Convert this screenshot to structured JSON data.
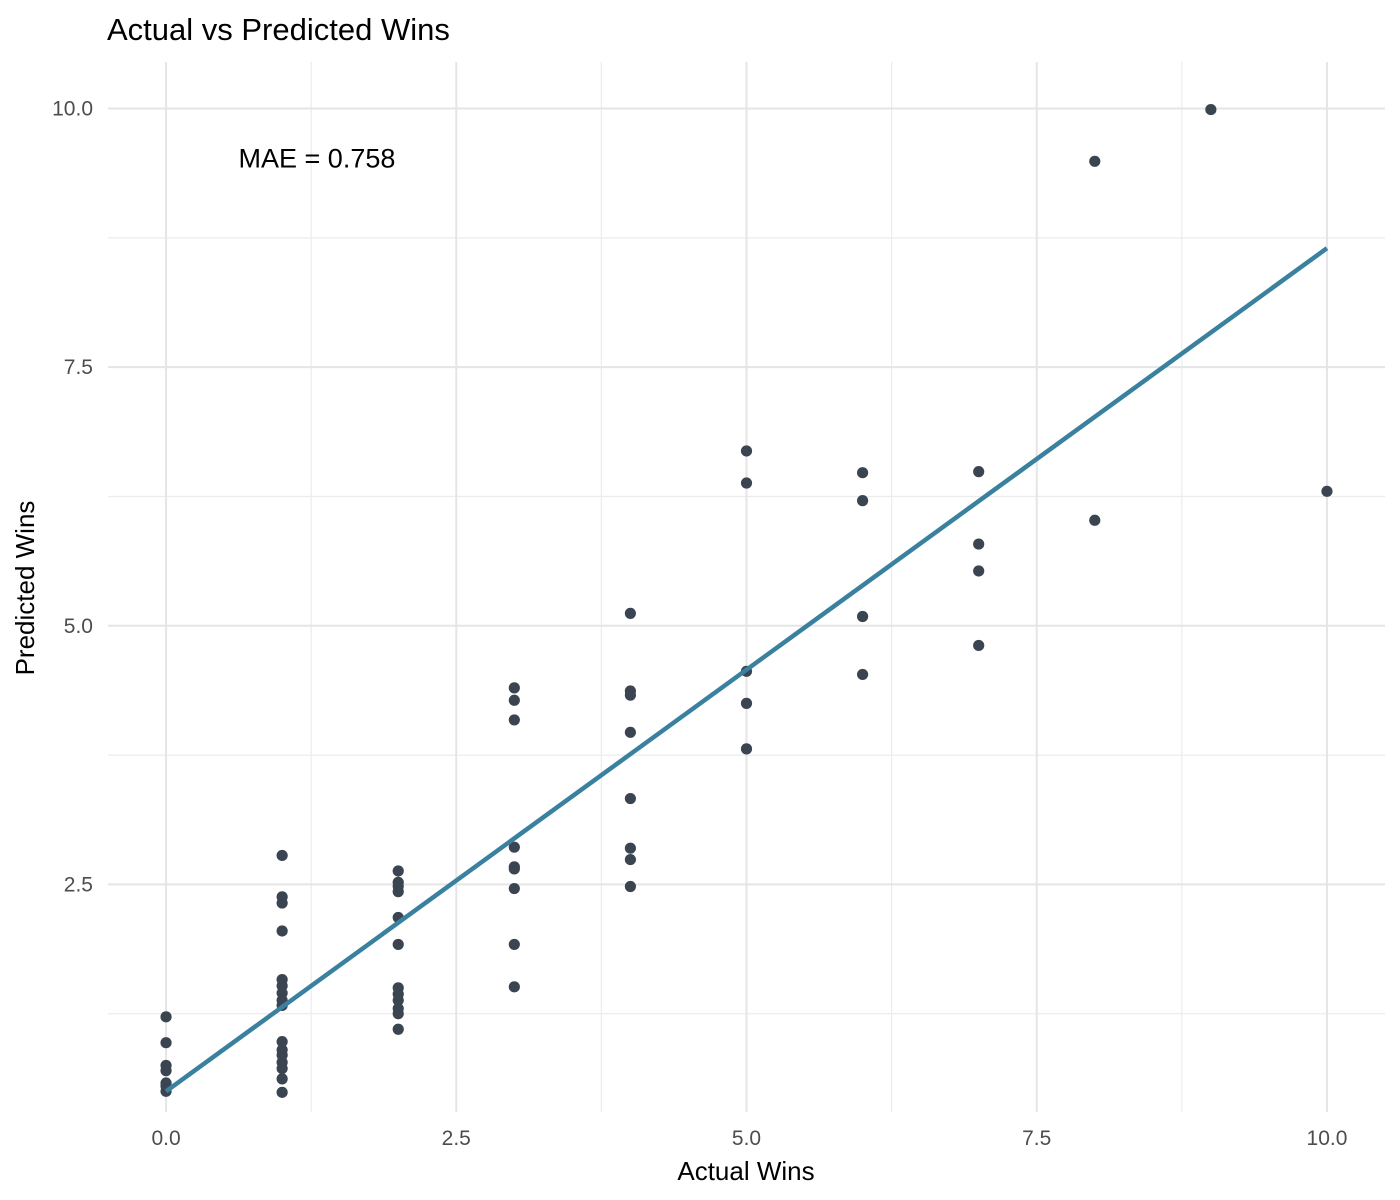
{
  "chart_data": {
    "type": "scatter",
    "title": "Actual vs Predicted Wins",
    "xlabel": "Actual Wins",
    "ylabel": "Predicted Wins",
    "xlim": [
      -0.5,
      10.5
    ],
    "ylim": [
      0.3,
      10.45
    ],
    "x_ticks": [
      0.0,
      2.5,
      5.0,
      7.5,
      10.0
    ],
    "y_ticks": [
      2.5,
      5.0,
      7.5,
      10.0
    ],
    "x_tick_labels": [
      "0.0",
      "2.5",
      "5.0",
      "7.5",
      "10.0"
    ],
    "y_tick_labels": [
      "2.5",
      "5.0",
      "7.5",
      "10.0"
    ],
    "grid": true,
    "annotation": {
      "text": "MAE = 0.758",
      "x": 1.3,
      "y": 9.5
    },
    "point_color": "#3b4552",
    "fit_line": {
      "color": "#3a819f",
      "x": [
        0,
        10
      ],
      "y": [
        0.5,
        8.65
      ]
    },
    "points": [
      {
        "x": 0,
        "y": 1.22
      },
      {
        "x": 0,
        "y": 0.97
      },
      {
        "x": 0,
        "y": 0.75
      },
      {
        "x": 0,
        "y": 0.7
      },
      {
        "x": 0,
        "y": 0.58
      },
      {
        "x": 0,
        "y": 0.55
      },
      {
        "x": 0,
        "y": 0.5
      },
      {
        "x": 1,
        "y": 2.78
      },
      {
        "x": 1,
        "y": 2.38
      },
      {
        "x": 1,
        "y": 2.32
      },
      {
        "x": 1,
        "y": 2.05
      },
      {
        "x": 1,
        "y": 1.58
      },
      {
        "x": 1,
        "y": 1.52
      },
      {
        "x": 1,
        "y": 1.45
      },
      {
        "x": 1,
        "y": 1.38
      },
      {
        "x": 1,
        "y": 1.33
      },
      {
        "x": 1,
        "y": 0.98
      },
      {
        "x": 1,
        "y": 0.9
      },
      {
        "x": 1,
        "y": 0.85
      },
      {
        "x": 1,
        "y": 0.78
      },
      {
        "x": 1,
        "y": 0.72
      },
      {
        "x": 1,
        "y": 0.62
      },
      {
        "x": 1,
        "y": 0.49
      },
      {
        "x": 2,
        "y": 2.63
      },
      {
        "x": 2,
        "y": 2.52
      },
      {
        "x": 2,
        "y": 2.48
      },
      {
        "x": 2,
        "y": 2.43
      },
      {
        "x": 2,
        "y": 2.18
      },
      {
        "x": 2,
        "y": 1.92
      },
      {
        "x": 2,
        "y": 1.5
      },
      {
        "x": 2,
        "y": 1.44
      },
      {
        "x": 2,
        "y": 1.38
      },
      {
        "x": 2,
        "y": 1.3
      },
      {
        "x": 2,
        "y": 1.25
      },
      {
        "x": 2,
        "y": 1.1
      },
      {
        "x": 3,
        "y": 4.4
      },
      {
        "x": 3,
        "y": 4.28
      },
      {
        "x": 3,
        "y": 4.09
      },
      {
        "x": 3,
        "y": 2.86
      },
      {
        "x": 3,
        "y": 2.67
      },
      {
        "x": 3,
        "y": 2.65
      },
      {
        "x": 3,
        "y": 2.46
      },
      {
        "x": 3,
        "y": 1.92
      },
      {
        "x": 3,
        "y": 1.51
      },
      {
        "x": 4,
        "y": 5.12
      },
      {
        "x": 4,
        "y": 4.37
      },
      {
        "x": 4,
        "y": 4.33
      },
      {
        "x": 4,
        "y": 3.97
      },
      {
        "x": 4,
        "y": 3.33
      },
      {
        "x": 4,
        "y": 2.85
      },
      {
        "x": 4,
        "y": 2.74
      },
      {
        "x": 4,
        "y": 2.48
      },
      {
        "x": 5,
        "y": 6.69
      },
      {
        "x": 5,
        "y": 6.38
      },
      {
        "x": 5,
        "y": 4.56
      },
      {
        "x": 5,
        "y": 4.25
      },
      {
        "x": 5,
        "y": 3.81
      },
      {
        "x": 6,
        "y": 6.48
      },
      {
        "x": 6,
        "y": 6.21
      },
      {
        "x": 6,
        "y": 5.09
      },
      {
        "x": 6,
        "y": 4.53
      },
      {
        "x": 7,
        "y": 6.49
      },
      {
        "x": 7,
        "y": 5.79
      },
      {
        "x": 7,
        "y": 5.53
      },
      {
        "x": 7,
        "y": 4.81
      },
      {
        "x": 8,
        "y": 9.49
      },
      {
        "x": 8,
        "y": 6.02
      },
      {
        "x": 9,
        "y": 9.99
      },
      {
        "x": 10,
        "y": 6.3
      }
    ]
  }
}
